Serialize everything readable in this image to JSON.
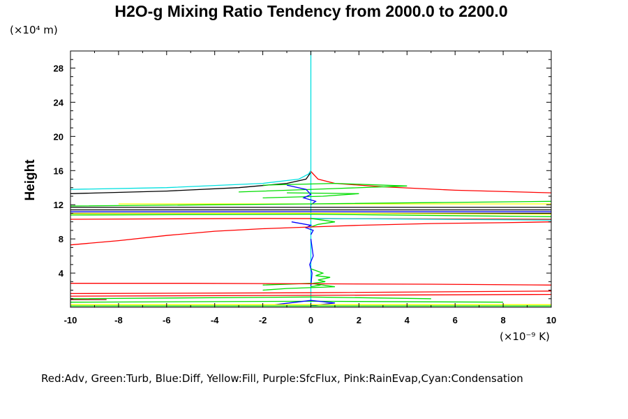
{
  "chart_data": {
    "type": "line",
    "title": "H2O-g Mixing Ratio Tendency from 2000.0 to 2200.0",
    "ylabel": "Height",
    "y_unit": "(×10⁴ m)",
    "x_unit": "(×10⁻⁹ K)",
    "legend_text": "Red:Adv, Green:Turb, Blue:Diff, Yellow:Fill, Purple:SfcFlux, Pink:RainEvap,Cyan:Condensation",
    "xlim": [
      -10,
      10
    ],
    "ylim": [
      0,
      30
    ],
    "x_ticks": [
      -10,
      -8,
      -6,
      -4,
      -2,
      0,
      2,
      4,
      6,
      8,
      10
    ],
    "y_ticks": [
      4,
      8,
      12,
      16,
      20,
      24,
      28
    ],
    "colors": {
      "Adv": "#ff0000",
      "Turb": "#00dd00",
      "Diff": "#0000ff",
      "Fill": "#ffff00",
      "Condensation": "#00e0e0",
      "Black": "#000000",
      "DarkRed": "#8b0000",
      "Navy": "#000080"
    },
    "series": [
      {
        "color": "#00e0e0",
        "x": [
          -10,
          -6,
          -2,
          -0.5,
          -0.1,
          0
        ],
        "y": [
          13.8,
          14.0,
          14.5,
          15.0,
          15.6,
          16.0
        ]
      },
      {
        "color": "#000000",
        "x": [
          -10,
          -6,
          -3,
          -1,
          -0.2,
          0
        ],
        "y": [
          13.3,
          13.6,
          14.0,
          14.5,
          15.0,
          15.8
        ]
      },
      {
        "color": "#00e0e0",
        "x": [
          0,
          0,
          0,
          0
        ],
        "y": [
          0,
          10,
          20,
          30
        ]
      },
      {
        "color": "#ff0000",
        "x": [
          0,
          0.3,
          1,
          3,
          6,
          10
        ],
        "y": [
          15.9,
          15.0,
          14.5,
          14.1,
          13.7,
          13.4
        ]
      },
      {
        "color": "#00dd00",
        "x": [
          -3,
          1,
          4,
          1,
          -2
        ],
        "y": [
          13.5,
          13.9,
          14.2,
          14.5,
          14.3
        ]
      },
      {
        "color": "#00dd00",
        "x": [
          -2,
          0.5,
          2,
          -1
        ],
        "y": [
          12.8,
          13.0,
          13.3,
          13.4
        ]
      },
      {
        "color": "#0000ff",
        "x": [
          -1,
          -0.2,
          0,
          -0.3,
          0.2,
          0
        ],
        "y": [
          14.3,
          13.8,
          13.2,
          12.8,
          12.4,
          12.0
        ]
      },
      {
        "color": "#ffff00",
        "x": [
          -8,
          0,
          10
        ],
        "y": [
          12.1,
          12.1,
          12.1
        ]
      },
      {
        "color": "#00dd00",
        "x": [
          -10,
          0,
          10
        ],
        "y": [
          11.85,
          12.1,
          12.4
        ]
      },
      {
        "color": "#000000",
        "x": [
          -10,
          10
        ],
        "y": [
          11.7,
          11.7
        ]
      },
      {
        "color": "#000000",
        "x": [
          -10,
          10
        ],
        "y": [
          11.4,
          11.4
        ]
      },
      {
        "color": "#0000ff",
        "x": [
          -10,
          10
        ],
        "y": [
          11.2,
          11.2
        ]
      },
      {
        "color": "#000000",
        "x": [
          -10,
          10
        ],
        "y": [
          11.0,
          11.0
        ]
      },
      {
        "color": "#00dd00",
        "x": [
          -10,
          0,
          10
        ],
        "y": [
          10.8,
          10.9,
          10.6
        ]
      },
      {
        "color": "#ffff00",
        "x": [
          -10,
          0,
          10
        ],
        "y": [
          10.95,
          11.0,
          10.9
        ]
      },
      {
        "color": "#ff0000",
        "x": [
          -10,
          -2,
          10
        ],
        "y": [
          10.3,
          10.4,
          10.3
        ]
      },
      {
        "color": "#00e0e0",
        "x": [
          0,
          5,
          10
        ],
        "y": [
          10.4,
          10.3,
          10.2
        ]
      },
      {
        "color": "#0000ff",
        "x": [
          -0.8,
          0,
          -0.2,
          0.1,
          0
        ],
        "y": [
          10.0,
          9.6,
          9.3,
          9.0,
          8.5
        ]
      },
      {
        "color": "#00dd00",
        "x": [
          0,
          1,
          0.3,
          0
        ],
        "y": [
          10.4,
          10.0,
          9.7,
          9.4
        ]
      },
      {
        "color": "#ff0000",
        "x": [
          -10,
          -8,
          -6,
          -4,
          -2,
          0,
          2,
          5,
          8,
          10
        ],
        "y": [
          7.3,
          7.8,
          8.4,
          8.9,
          9.2,
          9.4,
          9.6,
          9.8,
          9.9,
          10.0
        ]
      },
      {
        "color": "#0000ff",
        "x": [
          0,
          0.1,
          -0.05,
          0.05,
          0
        ],
        "y": [
          8.0,
          6.0,
          5.0,
          4.0,
          2.5
        ]
      },
      {
        "color": "#00dd00",
        "x": [
          0,
          0.5,
          0.2,
          0.8,
          0.3,
          0.6,
          0.1,
          0.4,
          0
        ],
        "y": [
          4.5,
          4.0,
          3.7,
          3.5,
          3.2,
          3.0,
          2.8,
          2.6,
          2.4
        ]
      },
      {
        "color": "#00dd00",
        "x": [
          -2,
          0,
          1,
          -1,
          -2
        ],
        "y": [
          2.6,
          2.8,
          2.4,
          2.2,
          2.0
        ]
      },
      {
        "color": "#ff0000",
        "x": [
          -10,
          -5,
          0,
          5,
          10
        ],
        "y": [
          2.8,
          2.8,
          2.75,
          2.7,
          2.6
        ]
      },
      {
        "color": "#ff0000",
        "x": [
          -10,
          0,
          10
        ],
        "y": [
          1.6,
          1.7,
          1.9
        ]
      },
      {
        "color": "#ff0000",
        "x": [
          -10,
          0,
          10
        ],
        "y": [
          1.3,
          1.4,
          1.5
        ]
      },
      {
        "color": "#00dd00",
        "x": [
          -10,
          0,
          5
        ],
        "y": [
          1.0,
          1.2,
          1.0
        ]
      },
      {
        "color": "#8b0000",
        "x": [
          -10,
          -8.5
        ],
        "y": [
          0.9,
          0.9
        ]
      },
      {
        "color": "#00dd00",
        "x": [
          -10,
          0,
          8
        ],
        "y": [
          0.6,
          0.7,
          0.6
        ]
      },
      {
        "color": "#0000ff",
        "x": [
          -1.5,
          0,
          1,
          0
        ],
        "y": [
          0.3,
          0.8,
          0.5,
          0.2
        ]
      },
      {
        "color": "#ffff00",
        "x": [
          -10,
          10
        ],
        "y": [
          0.3,
          0.3
        ]
      },
      {
        "color": "#00dd00",
        "x": [
          -10,
          10
        ],
        "y": [
          0.15,
          0.15
        ]
      }
    ]
  }
}
